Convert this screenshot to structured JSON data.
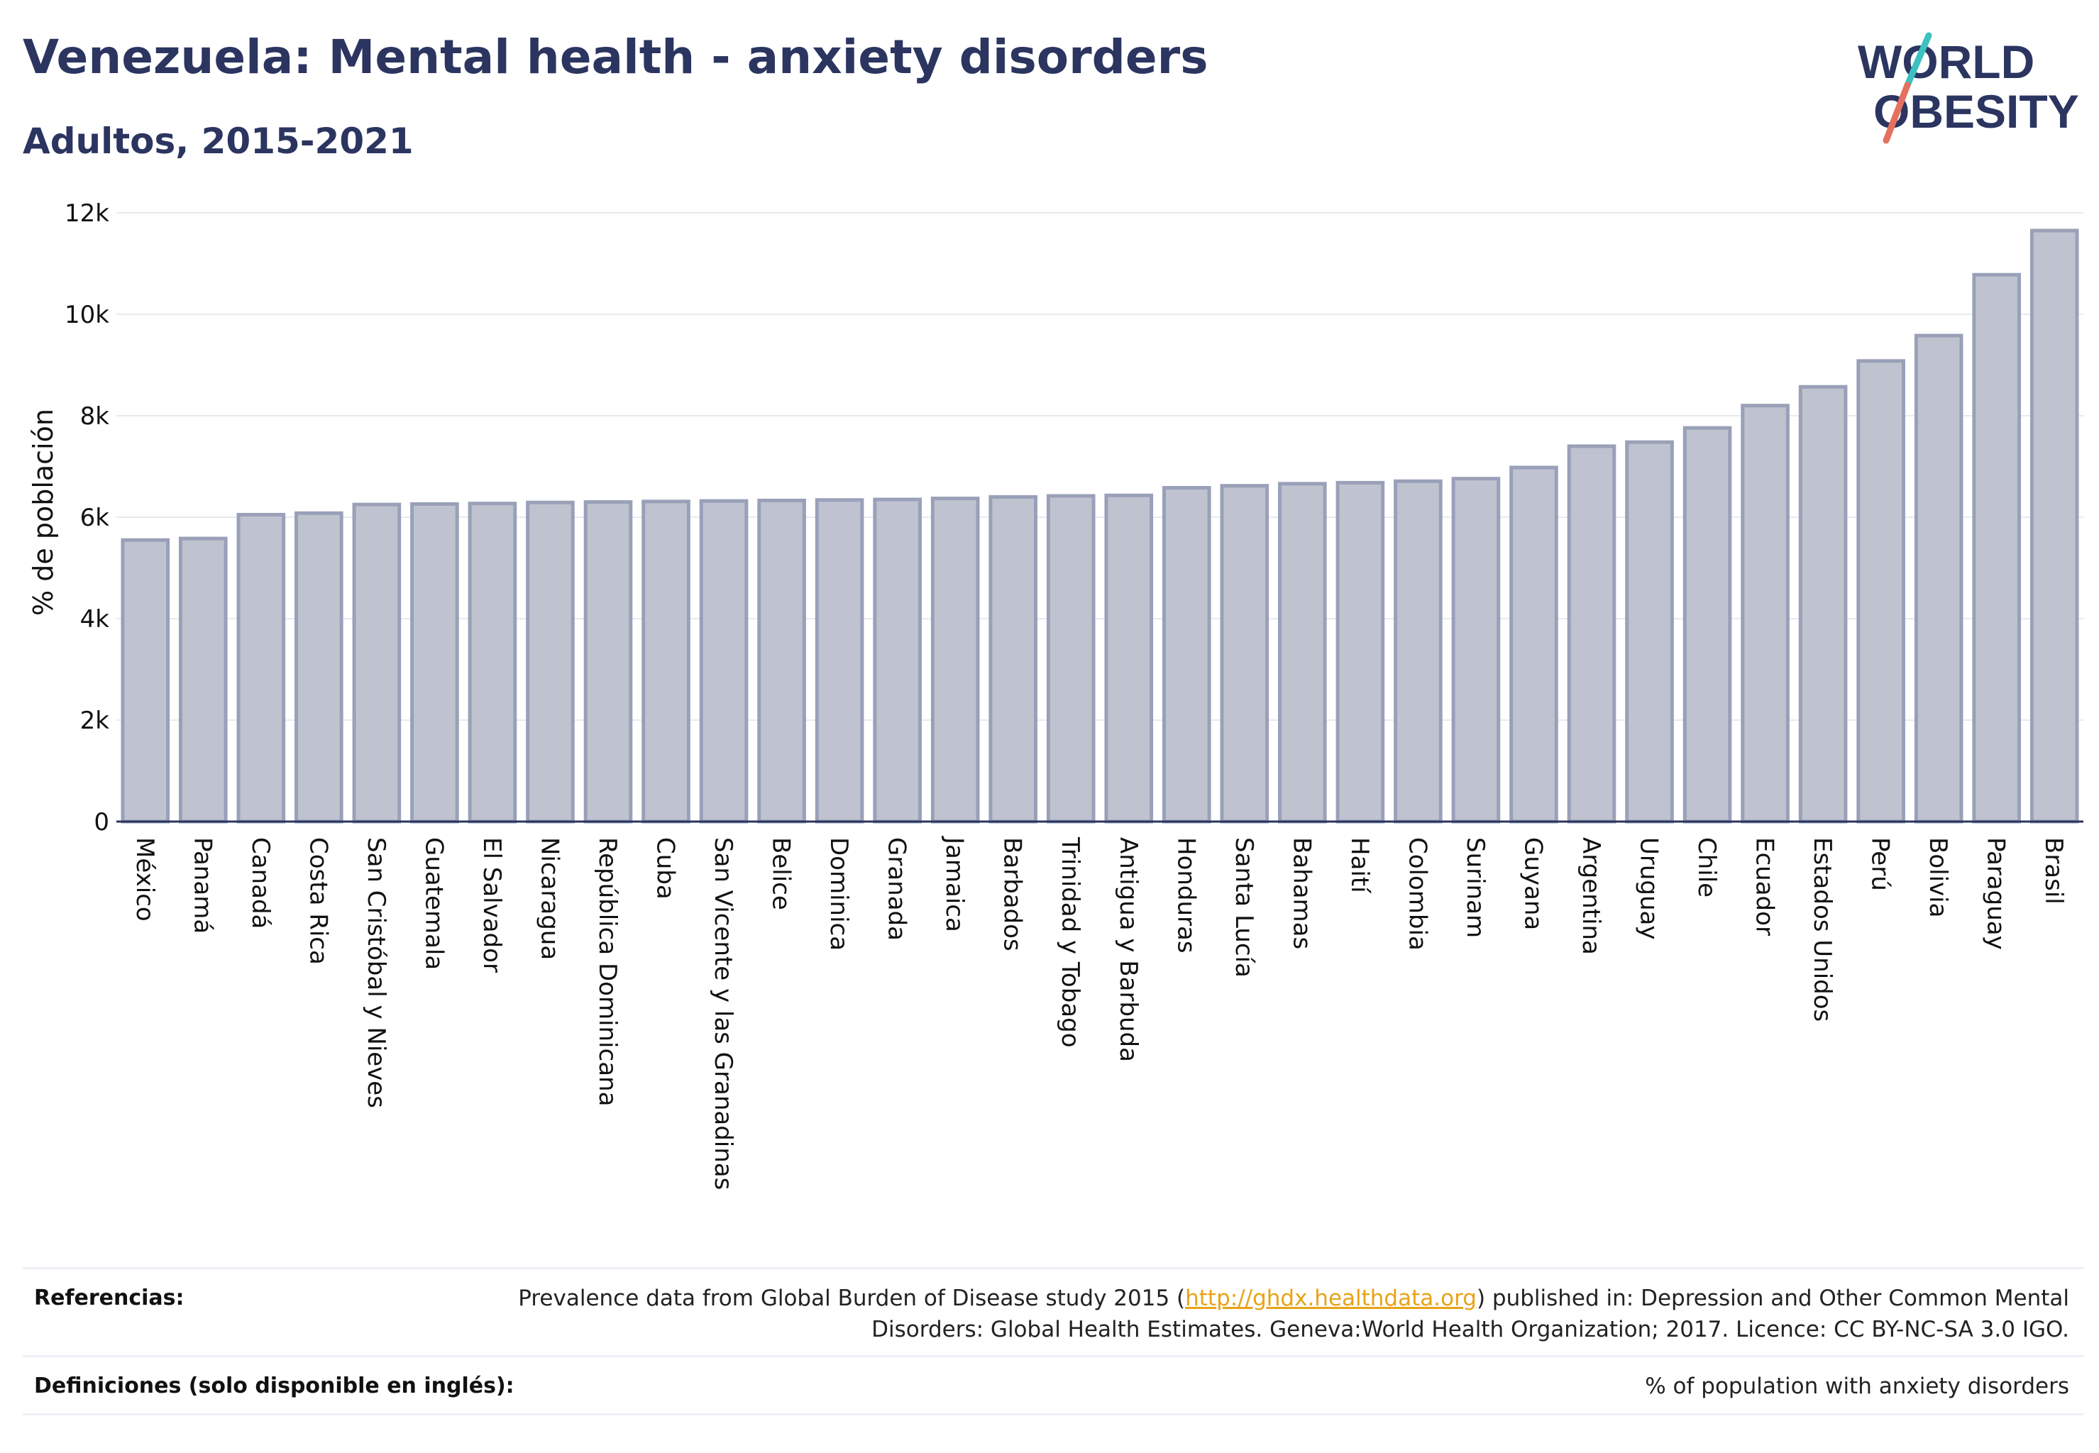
{
  "header": {
    "title": "Venezuela: Mental health - anxiety disorders",
    "subtitle": "Adultos, 2015-2021"
  },
  "logo": {
    "line1": "WORLD",
    "line2": "OBESITY",
    "accent_colors": [
      "#3cc1c0",
      "#e5705f"
    ]
  },
  "colors": {
    "bar_fill": "#bfc3d0",
    "bar_stroke": "#99a0b8",
    "text": "#2b3560",
    "grid": "#e8eaf0",
    "link": "#e8a317"
  },
  "chart_data": {
    "type": "bar",
    "ylabel": "% de población",
    "xlabel": "",
    "ylim": [
      0,
      12000
    ],
    "yticks": [
      0,
      2000,
      4000,
      6000,
      8000,
      10000,
      12000
    ],
    "ytick_labels": [
      "0",
      "2k",
      "4k",
      "6k",
      "8k",
      "10k",
      "12k"
    ],
    "grid": true,
    "categories": [
      "México",
      "Panamá",
      "Canadá",
      "Costa Rica",
      "San Cristóbal y Nieves",
      "Guatemala",
      "El Salvador",
      "Nicaragua",
      "República Dominicana",
      "Cuba",
      "San Vicente y las Granadinas",
      "Belice",
      "Dominica",
      "Granada",
      "Jamaica",
      "Barbados",
      "Trinidad y Tobago",
      "Antigua y Barbuda",
      "Honduras",
      "Santa Lucía",
      "Bahamas",
      "Haití",
      "Colombia",
      "Surinam",
      "Guyana",
      "Argentina",
      "Uruguay",
      "Chile",
      "Ecuador",
      "Estados Unidos",
      "Perú",
      "Bolivia",
      "Paraguay",
      "Brasil"
    ],
    "values": [
      5550,
      5580,
      6050,
      6080,
      6250,
      6260,
      6270,
      6290,
      6300,
      6310,
      6320,
      6330,
      6340,
      6350,
      6370,
      6400,
      6420,
      6430,
      6580,
      6620,
      6660,
      6680,
      6710,
      6760,
      6980,
      7400,
      7480,
      7760,
      8200,
      8570,
      9080,
      9580,
      10780,
      11650
    ]
  },
  "footer": {
    "references_label": "Referencias:",
    "references_pre": "Prevalence data from Global Burden of Disease study 2015 (",
    "references_link": "http://ghdx.healthdata.org",
    "references_post": ") published in: Depression and Other Common Mental Disorders: Global Health Estimates. Geneva:World Health Organization; 2017. Licence: CC BY-NC-SA 3.0 IGO.",
    "definitions_label": "Definiciones (solo disponible en inglés):",
    "definitions_text": "% of population with anxiety disorders"
  }
}
